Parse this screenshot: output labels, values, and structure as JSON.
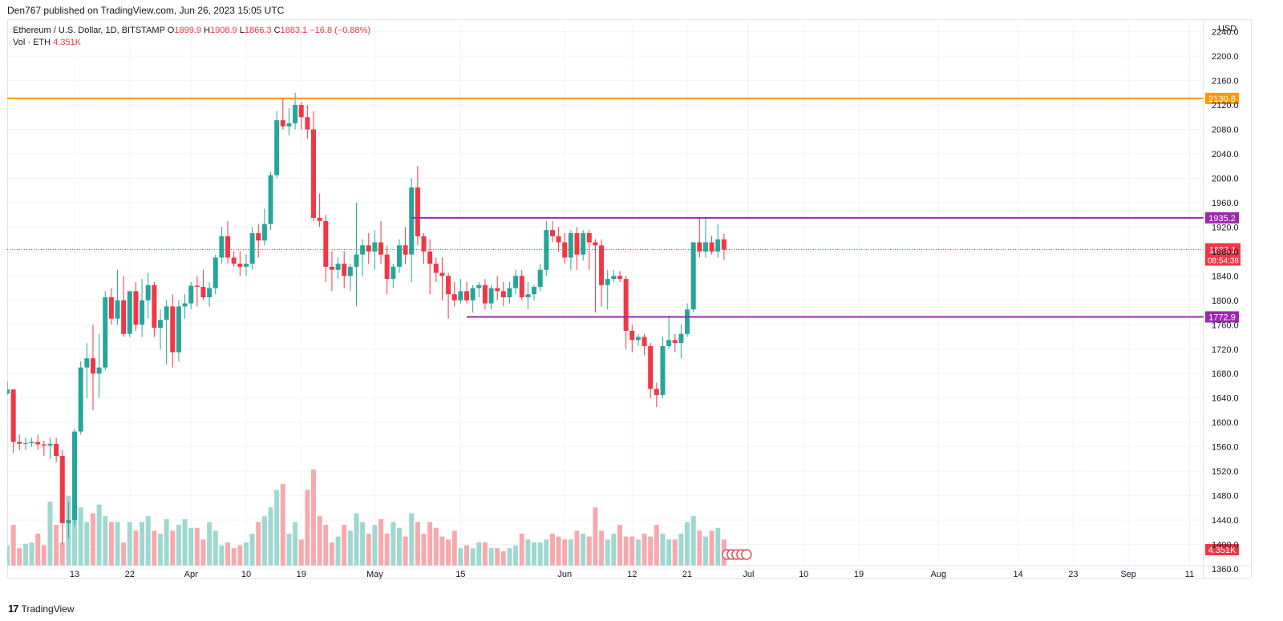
{
  "header": {
    "published_text": "Den767 published on TradingView.com, Jun 26, 2023 15:05 UTC"
  },
  "legend": {
    "symbol": "Ethereum / U.S. Dollar, 1D, BITSTAMP",
    "o_label": "O",
    "o": "1899.9",
    "h_label": "H",
    "h": "1908.9",
    "l_label": "L",
    "l": "1866.3",
    "c_label": "C",
    "c": "1883.1",
    "change": "−16.8 (−0.88%)",
    "vol_label": "Vol · ETH",
    "vol": "4.351K"
  },
  "footer": {
    "brand_mark": "17",
    "brand": "TradingView"
  },
  "colors": {
    "up": "#26a69a",
    "down": "#f23645",
    "vol_up": "#9fd8d1",
    "vol_down": "#f6a9ae",
    "orange": "#ff9800",
    "purple": "#9c27b0",
    "grid": "#f0f3fa"
  },
  "chart_data": {
    "type": "candlestick",
    "currency_label": "USD",
    "y_ticks": [
      "2240.0",
      "2200.0",
      "2160.0",
      "2120.0",
      "2080.0",
      "2040.0",
      "2000.0",
      "1960.0",
      "1920.0",
      "1880.0",
      "1840.0",
      "1800.0",
      "1760.0",
      "1720.0",
      "1680.0",
      "1640.0",
      "1600.0",
      "1560.0",
      "1520.0",
      "1480.0",
      "1440.0",
      "1400.0",
      "1360.0"
    ],
    "ylim": [
      1360,
      2260
    ],
    "x_ticks": [
      {
        "label": "13",
        "date": "2023-03-13"
      },
      {
        "label": "22",
        "date": "2023-03-22"
      },
      {
        "label": "Apr",
        "date": "2023-04-01"
      },
      {
        "label": "10",
        "date": "2023-04-10"
      },
      {
        "label": "19",
        "date": "2023-04-19"
      },
      {
        "label": "May",
        "date": "2023-05-01"
      },
      {
        "label": "15",
        "date": "2023-05-15"
      },
      {
        "label": "Jun",
        "date": "2023-06-01"
      },
      {
        "label": "12",
        "date": "2023-06-12"
      },
      {
        "label": "21",
        "date": "2023-06-21"
      },
      {
        "label": "Jul",
        "date": "2023-07-01"
      },
      {
        "label": "10",
        "date": "2023-07-10"
      },
      {
        "label": "19",
        "date": "2023-07-19"
      },
      {
        "label": "Aug",
        "date": "2023-08-01"
      },
      {
        "label": "14",
        "date": "2023-08-14"
      },
      {
        "label": "23",
        "date": "2023-08-23"
      },
      {
        "label": "Sep",
        "date": "2023-09-01"
      },
      {
        "label": "11",
        "date": "2023-09-11"
      }
    ],
    "first_date": "2023-03-02",
    "ohlc": [
      [
        1647,
        1667,
        1645,
        1654
      ],
      [
        1654,
        1654,
        1550,
        1568
      ],
      [
        1568,
        1580,
        1555,
        1565
      ],
      [
        1565,
        1575,
        1555,
        1566
      ],
      [
        1566,
        1575,
        1560,
        1568
      ],
      [
        1568,
        1580,
        1555,
        1564
      ],
      [
        1564,
        1570,
        1545,
        1562
      ],
      [
        1562,
        1575,
        1540,
        1565
      ],
      [
        1565,
        1575,
        1535,
        1545
      ],
      [
        1545,
        1555,
        1400,
        1435
      ],
      [
        1435,
        1470,
        1410,
        1440
      ],
      [
        1440,
        1590,
        1430,
        1585
      ],
      [
        1585,
        1700,
        1580,
        1690
      ],
      [
        1690,
        1730,
        1640,
        1705
      ],
      [
        1705,
        1760,
        1620,
        1680
      ],
      [
        1680,
        1745,
        1640,
        1690
      ],
      [
        1690,
        1815,
        1685,
        1805
      ],
      [
        1805,
        1820,
        1760,
        1770
      ],
      [
        1770,
        1850,
        1760,
        1800
      ],
      [
        1800,
        1840,
        1740,
        1745
      ],
      [
        1745,
        1815,
        1740,
        1815
      ],
      [
        1815,
        1830,
        1750,
        1760
      ],
      [
        1760,
        1835,
        1740,
        1800
      ],
      [
        1800,
        1845,
        1770,
        1825
      ],
      [
        1825,
        1830,
        1740,
        1755
      ],
      [
        1755,
        1785,
        1720,
        1768
      ],
      [
        1768,
        1800,
        1695,
        1790
      ],
      [
        1790,
        1810,
        1690,
        1715
      ],
      [
        1715,
        1800,
        1700,
        1790
      ],
      [
        1790,
        1810,
        1770,
        1795
      ],
      [
        1795,
        1830,
        1785,
        1824
      ],
      [
        1824,
        1840,
        1790,
        1822
      ],
      [
        1822,
        1850,
        1800,
        1805
      ],
      [
        1805,
        1830,
        1790,
        1820
      ],
      [
        1820,
        1875,
        1810,
        1870
      ],
      [
        1870,
        1920,
        1860,
        1905
      ],
      [
        1905,
        1930,
        1860,
        1870
      ],
      [
        1870,
        1880,
        1855,
        1860
      ],
      [
        1860,
        1880,
        1840,
        1855
      ],
      [
        1855,
        1875,
        1840,
        1860
      ],
      [
        1860,
        1920,
        1850,
        1910
      ],
      [
        1910,
        1925,
        1870,
        1898
      ],
      [
        1898,
        1950,
        1890,
        1925
      ],
      [
        1925,
        2010,
        1915,
        2005
      ],
      [
        2005,
        2110,
        2000,
        2095
      ],
      [
        2095,
        2130,
        2080,
        2085
      ],
      [
        2085,
        2115,
        2070,
        2090
      ],
      [
        2090,
        2140,
        2080,
        2120
      ],
      [
        2120,
        2125,
        2080,
        2100
      ],
      [
        2100,
        2120,
        2065,
        2080
      ],
      [
        2080,
        2110,
        1930,
        1935
      ],
      [
        1935,
        1975,
        1920,
        1930
      ],
      [
        1930,
        1940,
        1830,
        1855
      ],
      [
        1855,
        1880,
        1815,
        1850
      ],
      [
        1850,
        1870,
        1835,
        1860
      ],
      [
        1860,
        1880,
        1820,
        1840
      ],
      [
        1840,
        1860,
        1815,
        1855
      ],
      [
        1855,
        1960,
        1790,
        1875
      ],
      [
        1875,
        1900,
        1840,
        1890
      ],
      [
        1890,
        1910,
        1860,
        1880
      ],
      [
        1880,
        1915,
        1850,
        1895
      ],
      [
        1895,
        1930,
        1860,
        1875
      ],
      [
        1875,
        1890,
        1810,
        1835
      ],
      [
        1835,
        1860,
        1820,
        1855
      ],
      [
        1855,
        1900,
        1845,
        1890
      ],
      [
        1890,
        1920,
        1860,
        1875
      ],
      [
        1875,
        2000,
        1830,
        1985
      ],
      [
        1985,
        2020,
        1890,
        1905
      ],
      [
        1905,
        1910,
        1860,
        1880
      ],
      [
        1880,
        1900,
        1810,
        1860
      ],
      [
        1860,
        1870,
        1830,
        1845
      ],
      [
        1845,
        1870,
        1800,
        1840
      ],
      [
        1840,
        1845,
        1770,
        1810
      ],
      [
        1810,
        1830,
        1790,
        1800
      ],
      [
        1800,
        1835,
        1795,
        1815
      ],
      [
        1815,
        1830,
        1795,
        1800
      ],
      [
        1800,
        1825,
        1780,
        1820
      ],
      [
        1820,
        1830,
        1805,
        1825
      ],
      [
        1825,
        1835,
        1785,
        1795
      ],
      [
        1795,
        1825,
        1785,
        1820
      ],
      [
        1820,
        1840,
        1800,
        1815
      ],
      [
        1815,
        1830,
        1790,
        1805
      ],
      [
        1805,
        1830,
        1795,
        1820
      ],
      [
        1820,
        1850,
        1810,
        1840
      ],
      [
        1840,
        1850,
        1800,
        1805
      ],
      [
        1805,
        1830,
        1785,
        1810
      ],
      [
        1810,
        1825,
        1800,
        1822
      ],
      [
        1822,
        1860,
        1815,
        1850
      ],
      [
        1850,
        1930,
        1840,
        1915
      ],
      [
        1915,
        1930,
        1895,
        1905
      ],
      [
        1905,
        1920,
        1880,
        1895
      ],
      [
        1895,
        1910,
        1860,
        1870
      ],
      [
        1870,
        1915,
        1850,
        1910
      ],
      [
        1910,
        1920,
        1850,
        1875
      ],
      [
        1875,
        1915,
        1865,
        1910
      ],
      [
        1910,
        1915,
        1850,
        1895
      ],
      [
        1895,
        1900,
        1780,
        1890
      ],
      [
        1890,
        1900,
        1790,
        1825
      ],
      [
        1825,
        1850,
        1785,
        1835
      ],
      [
        1835,
        1850,
        1830,
        1840
      ],
      [
        1840,
        1848,
        1830,
        1835
      ],
      [
        1835,
        1840,
        1720,
        1750
      ],
      [
        1750,
        1760,
        1715,
        1735
      ],
      [
        1735,
        1745,
        1725,
        1740
      ],
      [
        1740,
        1745,
        1710,
        1725
      ],
      [
        1725,
        1730,
        1640,
        1655
      ],
      [
        1655,
        1665,
        1625,
        1645
      ],
      [
        1645,
        1740,
        1640,
        1725
      ],
      [
        1725,
        1775,
        1720,
        1735
      ],
      [
        1735,
        1745,
        1715,
        1730
      ],
      [
        1730,
        1760,
        1705,
        1745
      ],
      [
        1745,
        1795,
        1740,
        1785
      ],
      [
        1785,
        1895,
        1780,
        1895
      ],
      [
        1895,
        1935,
        1870,
        1880
      ],
      [
        1880,
        1935,
        1870,
        1895
      ],
      [
        1895,
        1905,
        1875,
        1880
      ],
      [
        1880,
        1925,
        1870,
        1900
      ],
      [
        1900,
        1909,
        1866,
        1883
      ]
    ],
    "volume": [
      70,
      140,
      60,
      75,
      80,
      110,
      70,
      220,
      140,
      80,
      240,
      180,
      200,
      150,
      180,
      210,
      170,
      150,
      150,
      80,
      150,
      120,
      150,
      170,
      120,
      110,
      160,
      120,
      140,
      160,
      130,
      130,
      90,
      150,
      120,
      70,
      80,
      60,
      70,
      80,
      110,
      150,
      170,
      200,
      260,
      280,
      110,
      150,
      90,
      260,
      330,
      170,
      140,
      80,
      100,
      140,
      120,
      180,
      150,
      110,
      140,
      160,
      110,
      150,
      130,
      100,
      180,
      150,
      110,
      150,
      130,
      100,
      90,
      120,
      60,
      70,
      60,
      80,
      80,
      60,
      60,
      50,
      60,
      70,
      110,
      90,
      80,
      80,
      90,
      110,
      100,
      90,
      90,
      120,
      110,
      100,
      200,
      120,
      90,
      110,
      140,
      100,
      100,
      90,
      110,
      100,
      140,
      110,
      90,
      90,
      110,
      150,
      170,
      120,
      100,
      120,
      130,
      90
    ]
  },
  "levels": [
    {
      "name": "orange-resistance",
      "price": "2130.8",
      "color": "#ff9800"
    },
    {
      "name": "purple-resistance",
      "price": "1935.2",
      "color": "#9c27b0"
    },
    {
      "name": "purple-support",
      "price": "1772.9",
      "color": "#9c27b0"
    }
  ],
  "current_price": {
    "price": "1883.1",
    "countdown": "08:54:38"
  },
  "volume_label": "4.351K"
}
